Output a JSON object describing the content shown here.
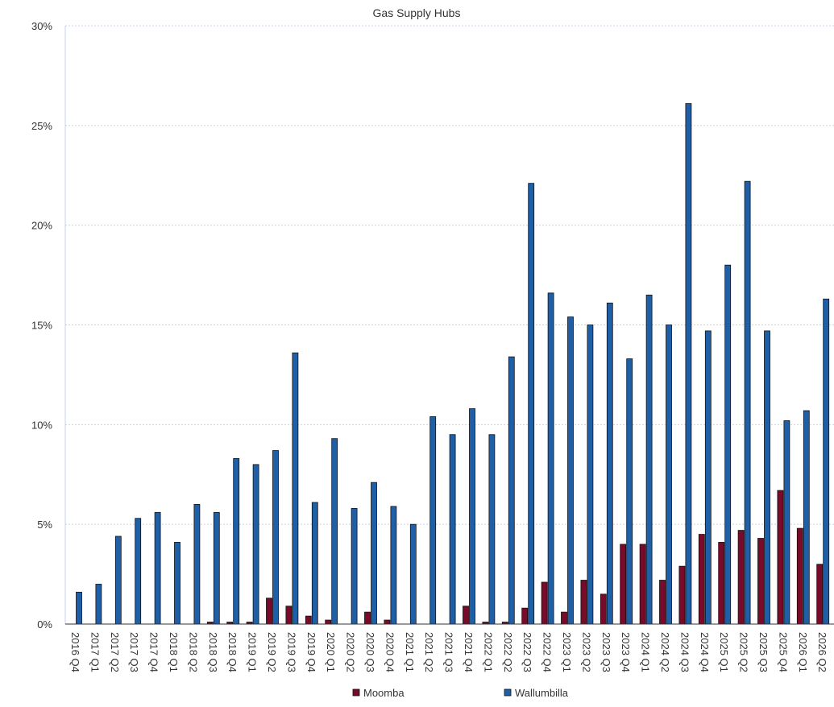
{
  "chart_data": {
    "type": "bar",
    "title": "Gas Supply Hubs",
    "xlabel": "",
    "ylabel": "",
    "ylim": [
      0,
      30
    ],
    "yticks": [
      "0%",
      "5%",
      "10%",
      "15%",
      "20%",
      "25%",
      "30%"
    ],
    "grid": true,
    "legend_position": "bottom",
    "categories": [
      "2016 Q4",
      "2017 Q1",
      "2017 Q2",
      "2017 Q3",
      "2017 Q4",
      "2018 Q1",
      "2018 Q2",
      "2018 Q3",
      "2018 Q4",
      "2019 Q1",
      "2019 Q2",
      "2019 Q3",
      "2019 Q4",
      "2020 Q1",
      "2020 Q2",
      "2020 Q3",
      "2020 Q4",
      "2021 Q1",
      "2021 Q2",
      "2021 Q3",
      "2021 Q4",
      "2022 Q1",
      "2022 Q2",
      "2022 Q3",
      "2022 Q4",
      "2023 Q1",
      "2023 Q2",
      "2023 Q3",
      "2023 Q4",
      "2024 Q1",
      "2024 Q2",
      "2024 Q3",
      "2024 Q4",
      "2025 Q1",
      "2025 Q2",
      "2025 Q3",
      "2025 Q4",
      "2026 Q1",
      "2026 Q2"
    ],
    "series": [
      {
        "name": "Moomba",
        "color": "#7a0a2a",
        "values": [
          0,
          0,
          0,
          0,
          0,
          0,
          0,
          0.1,
          0.1,
          0.1,
          1.3,
          0.9,
          0.4,
          0.2,
          0,
          0.6,
          0.2,
          0,
          0,
          0,
          0.9,
          0.1,
          0.1,
          0.8,
          2.1,
          0.6,
          2.2,
          1.5,
          4.0,
          4.0,
          2.2,
          2.9,
          4.5,
          4.1,
          4.7,
          4.3,
          6.7,
          4.8,
          3.0
        ]
      },
      {
        "name": "Wallumbilla",
        "color": "#1f5fa8",
        "values": [
          1.6,
          2.0,
          4.4,
          5.3,
          5.6,
          4.1,
          6.0,
          5.6,
          8.3,
          8.0,
          8.7,
          13.6,
          6.1,
          9.3,
          5.8,
          7.1,
          5.9,
          5.0,
          10.4,
          9.5,
          10.8,
          9.5,
          13.4,
          22.1,
          16.6,
          15.4,
          15.0,
          16.1,
          13.3,
          16.5,
          15.0,
          26.1,
          14.7,
          18.0,
          22.2,
          14.7,
          10.2,
          10.7,
          16.3
        ]
      }
    ]
  }
}
